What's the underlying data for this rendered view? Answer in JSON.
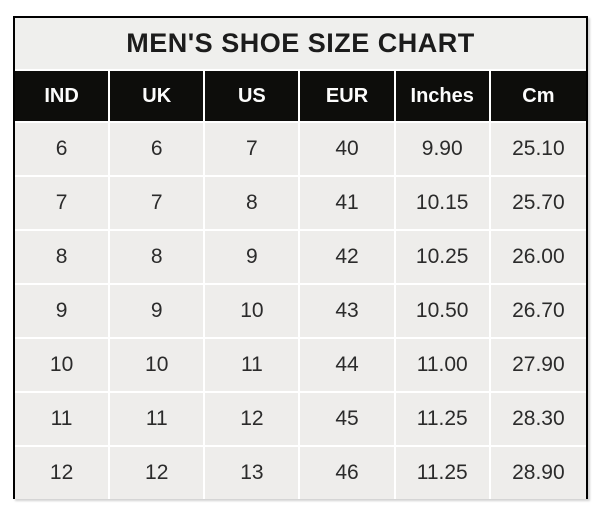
{
  "chart_data": {
    "type": "table",
    "title": "MEN'S SHOE SIZE CHART",
    "columns": [
      "IND",
      "UK",
      "US",
      "EUR",
      "Inches",
      "Cm"
    ],
    "rows": [
      [
        "6",
        "6",
        "7",
        "40",
        "9.90",
        "25.10"
      ],
      [
        "7",
        "7",
        "8",
        "41",
        "10.15",
        "25.70"
      ],
      [
        "8",
        "8",
        "9",
        "42",
        "10.25",
        "26.00"
      ],
      [
        "9",
        "9",
        "10",
        "43",
        "10.50",
        "26.70"
      ],
      [
        "10",
        "10",
        "11",
        "44",
        "11.00",
        "27.90"
      ],
      [
        "11",
        "11",
        "12",
        "45",
        "11.25",
        "28.30"
      ],
      [
        "12",
        "12",
        "13",
        "46",
        "11.25",
        "28.90"
      ]
    ],
    "layout": {
      "legend": "none",
      "grid": "white 2px separators",
      "outer_border": "black 2px"
    }
  },
  "colors": {
    "title_bg": "#efefed",
    "title_text": "#1c1c1c",
    "header_bg": "#0d0d0b",
    "header_text": "#fcfcfc",
    "cell_bg": "#eeedeb",
    "cell_text": "#2b2b2b",
    "separator": "#ffffff",
    "border": "#000000",
    "page_bg": "#ffffff"
  }
}
